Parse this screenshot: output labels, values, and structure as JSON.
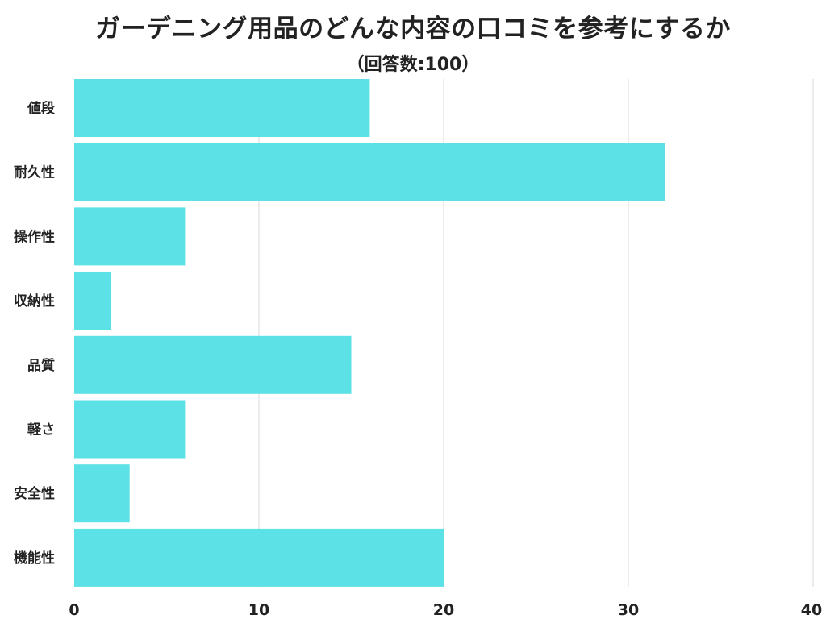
{
  "title": "ガーデニング用品のどんな内容の口コミを参考にするか",
  "subtitle": "（回答数:100）",
  "colors": {
    "bar": "#5ce1e6",
    "grid": "#d9d9d9",
    "text": "#222222"
  },
  "chart_data": {
    "type": "bar",
    "orientation": "horizontal",
    "categories": [
      "値段",
      "耐久性",
      "操作性",
      "収納性",
      "品質",
      "軽さ",
      "安全性",
      "機能性"
    ],
    "values": [
      16,
      32,
      6,
      2,
      15,
      6,
      3,
      20
    ],
    "xlim": [
      0,
      40
    ],
    "xticks": [
      0,
      10,
      20,
      30,
      40
    ],
    "grid": true,
    "legend": "none"
  }
}
